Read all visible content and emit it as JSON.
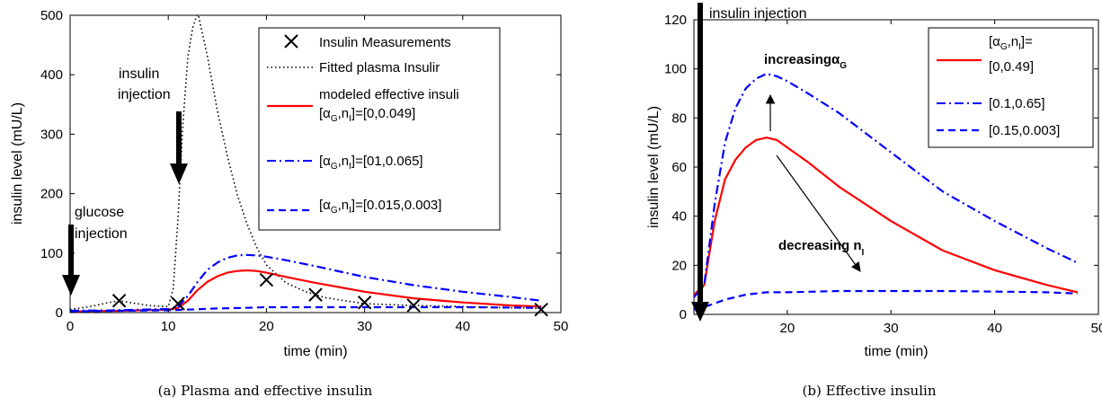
{
  "chart_data": [
    {
      "type": "line",
      "caption": "(a) Plasma and effective insulin",
      "xlabel": "time (min)",
      "ylabel": "insulin level (mU/L)",
      "xlim": [
        0,
        50
      ],
      "ylim": [
        0,
        500
      ],
      "xticks": [
        0,
        10,
        20,
        30,
        40,
        50
      ],
      "yticks": [
        0,
        100,
        200,
        300,
        400,
        500
      ],
      "grid": false,
      "legend_position": "top-right",
      "series": [
        {
          "name": "Insulin Measurements",
          "kind": "markers",
          "marker": "x",
          "color": "#000000",
          "x": [
            5,
            11,
            20,
            25,
            30,
            35,
            48
          ],
          "y": [
            20,
            15,
            55,
            30,
            17,
            12,
            5
          ]
        },
        {
          "name": "Fitted plasma Insulin",
          "kind": "line",
          "style": "dotted",
          "color": "#000000",
          "x": [
            0,
            2,
            4,
            5,
            6,
            8,
            10,
            10.5,
            11,
            11.5,
            12,
            12.5,
            13,
            14,
            15,
            16,
            17,
            18,
            19,
            20,
            22,
            24,
            26,
            28,
            30,
            35,
            40,
            45,
            48
          ],
          "y": [
            5,
            10,
            17,
            20,
            17,
            12,
            10,
            40,
            160,
            320,
            430,
            480,
            505,
            430,
            340,
            265,
            200,
            150,
            110,
            80,
            50,
            35,
            25,
            20,
            15,
            12,
            10,
            8,
            7
          ]
        },
        {
          "name": "modeled effective insuli",
          "kind": "line",
          "style": "solid",
          "color": "#ff0000",
          "x": [
            0,
            5,
            10,
            11,
            12,
            13,
            14,
            15,
            16,
            17,
            18,
            19,
            20,
            22,
            25,
            30,
            35,
            40,
            45,
            48
          ],
          "y": [
            2,
            3,
            5,
            8,
            20,
            38,
            52,
            61,
            67,
            70,
            71,
            70,
            67,
            60,
            50,
            35,
            24,
            17,
            12,
            10
          ]
        },
        {
          "name": "[α_G,n_I]=[01,0.065]",
          "kind": "line",
          "style": "dashdot",
          "color": "#0000ff",
          "x": [
            0,
            5,
            10,
            11,
            12,
            13,
            14,
            15,
            16,
            17,
            18,
            19,
            20,
            22,
            25,
            30,
            35,
            40,
            45,
            48
          ],
          "y": [
            3,
            4,
            6,
            10,
            28,
            52,
            72,
            84,
            92,
            96,
            97,
            96,
            94,
            88,
            78,
            60,
            46,
            35,
            26,
            20
          ]
        },
        {
          "name": "[α_G,n_I]=[0.015,0.003]",
          "kind": "line",
          "style": "dashed",
          "color": "#0000ff",
          "x": [
            0,
            5,
            10,
            12,
            15,
            18,
            20,
            25,
            30,
            40,
            48
          ],
          "y": [
            2,
            3,
            4,
            5,
            7,
            8,
            9,
            9,
            9,
            9,
            8
          ]
        }
      ],
      "legend_labels": [
        {
          "text": "Insulin Measurements"
        },
        {
          "text": "Fitted plasma Insulir"
        },
        {
          "text": "modeled effective insuli",
          "text2_pre": "[α",
          "sub1": "G",
          "mid": ",n",
          "sub2": "I",
          "post": "]=[0,0.049]"
        },
        {
          "pre": "[α",
          "sub1": "G",
          "mid": ",n",
          "sub2": "I",
          "post": "]=[01,0.065]"
        },
        {
          "pre": "[α",
          "sub1": "G",
          "mid": ",n",
          "sub2": "I",
          "post": "]=[0.015,0.003]"
        }
      ],
      "annotations": {
        "insulin_line1": "insulin",
        "insulin_line2": "injection",
        "glucose_line1": "glucose",
        "glucose_line2": "injection"
      }
    },
    {
      "type": "line",
      "caption": "(b) Effective insulin",
      "xlabel": "time (min)",
      "ylabel": "insulin level (mU/L)",
      "xlim": [
        11,
        50
      ],
      "ylim": [
        0,
        120
      ],
      "xticks": [
        20,
        30,
        40,
        50
      ],
      "yticks": [
        0,
        20,
        40,
        60,
        80,
        100,
        120
      ],
      "grid": false,
      "legend_position": "top-right",
      "series": [
        {
          "name": "[α_G,n_I]=[0,0.49]",
          "kind": "line",
          "style": "solid",
          "color": "#ff0000",
          "x": [
            11,
            12,
            13,
            14,
            15,
            16,
            17,
            18,
            19,
            20,
            22,
            25,
            30,
            35,
            40,
            45,
            48
          ],
          "y": [
            8,
            12,
            38,
            55,
            63,
            68,
            71,
            72,
            71,
            68,
            62,
            52,
            38,
            26,
            18,
            12,
            9
          ]
        },
        {
          "name": "[0.1,0.65]",
          "kind": "line",
          "style": "dashdot",
          "color": "#0000ff",
          "x": [
            11,
            12,
            13,
            14,
            15,
            16,
            17,
            18,
            19,
            20,
            22,
            25,
            30,
            35,
            40,
            45,
            48
          ],
          "y": [
            7,
            12,
            45,
            70,
            84,
            92,
            96,
            98,
            97,
            95,
            90,
            82,
            66,
            50,
            38,
            27,
            21
          ]
        },
        {
          "name": "[0.15,0.003]",
          "kind": "line",
          "style": "dashed",
          "color": "#0000ff",
          "x": [
            11,
            12,
            14,
            16,
            18,
            20,
            25,
            30,
            35,
            40,
            45,
            48
          ],
          "y": [
            2,
            3,
            6,
            8,
            9,
            9,
            9.5,
            9.5,
            9.5,
            9.3,
            9,
            8.5
          ]
        }
      ],
      "legend_labels": [
        {
          "pre": "[α",
          "sub1": "G",
          "mid": ",n",
          "sub2": "I",
          "post": "]=",
          "line2": "[0,0.49]"
        },
        {
          "text": "[0.1,0.65]"
        },
        {
          "text": "[0.15,0.003]"
        }
      ],
      "annotations": {
        "insulin_injection": "insulin injection",
        "increasing_pre": "increasing",
        "increasing_sym": "α",
        "increasing_sub": "G",
        "decreasing_pre": "decreasing n",
        "decreasing_sub": "I"
      }
    }
  ]
}
